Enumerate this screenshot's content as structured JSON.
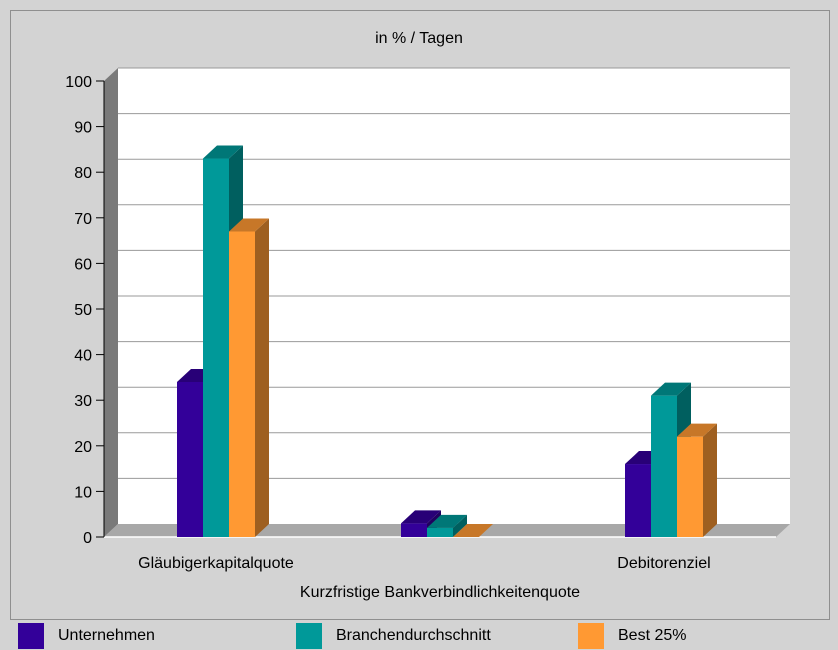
{
  "chart_data": {
    "type": "bar",
    "title": "in % / Tagen",
    "categories": [
      "Gläubigerkapitalquote",
      "Kurzfristige Bankverbindlichkeitenquote",
      "Debitorenziel"
    ],
    "series": [
      {
        "name": "Unternehmen",
        "values": [
          34,
          3,
          16
        ],
        "color": "#330099"
      },
      {
        "name": "Branchendurchschnitt",
        "values": [
          83,
          2,
          31
        ],
        "color": "#009999"
      },
      {
        "name": "Best 25%",
        "values": [
          67,
          0,
          22
        ],
        "color": "#ff9933"
      }
    ],
    "ylim": [
      0,
      100
    ],
    "yticks": [
      0,
      10,
      20,
      30,
      40,
      50,
      60,
      70,
      80,
      90,
      100
    ],
    "grid": true,
    "legend_position": "bottom"
  }
}
